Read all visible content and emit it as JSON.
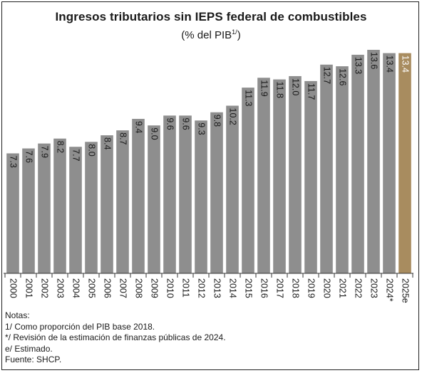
{
  "chart_data": {
    "type": "bar",
    "title": "Ingresos tributarios sin IEPS federal de combustibles",
    "subtitle": "(% del PIB",
    "subtitle_sup": "1/",
    "subtitle_close": ")",
    "categories": [
      "2000",
      "2001",
      "2002",
      "2003",
      "2004",
      "2005",
      "2006",
      "2007",
      "2008",
      "2009",
      "2010",
      "2011",
      "2012",
      "2013",
      "2014",
      "2015",
      "2016",
      "2017",
      "2018",
      "2019",
      "2020",
      "2021",
      "2022",
      "2023",
      "2024*",
      "2025e"
    ],
    "values": [
      7.3,
      7.6,
      7.9,
      8.2,
      7.7,
      8.0,
      8.4,
      8.7,
      9.4,
      9.0,
      9.6,
      9.6,
      9.3,
      9.8,
      10.2,
      11.3,
      11.9,
      11.8,
      12.0,
      11.7,
      12.7,
      12.6,
      13.3,
      13.6,
      13.4,
      13.4
    ],
    "data_labels": [
      "7.3",
      "7.6",
      "7.9",
      "8.2",
      "7.7",
      "8.0",
      "8.4",
      "8.7",
      "9.4",
      "9.0",
      "9.6",
      "9.6",
      "9.3",
      "9.8",
      "10.2",
      "11.3",
      "11.9",
      "11.8",
      "12.0",
      "11.7",
      "12.7",
      "12.6",
      "13.3",
      "13.6",
      "13.4",
      "13.4"
    ],
    "highlight_index": 25,
    "colors": {
      "bar": "#8e8e8e",
      "highlight": "#a88c5f",
      "label": "#1a1a1a",
      "highlight_label": "#ffffff"
    },
    "ylim": [
      0,
      13.6
    ],
    "grid": false,
    "legend": "none"
  },
  "notes": [
    "Notas:",
    "1/ Como proporción del PIB base 2018.",
    "*/ Revisión de la estimación de finanzas públicas de 2024.",
    "e/ Estimado.",
    "Fuente: SHCP."
  ]
}
